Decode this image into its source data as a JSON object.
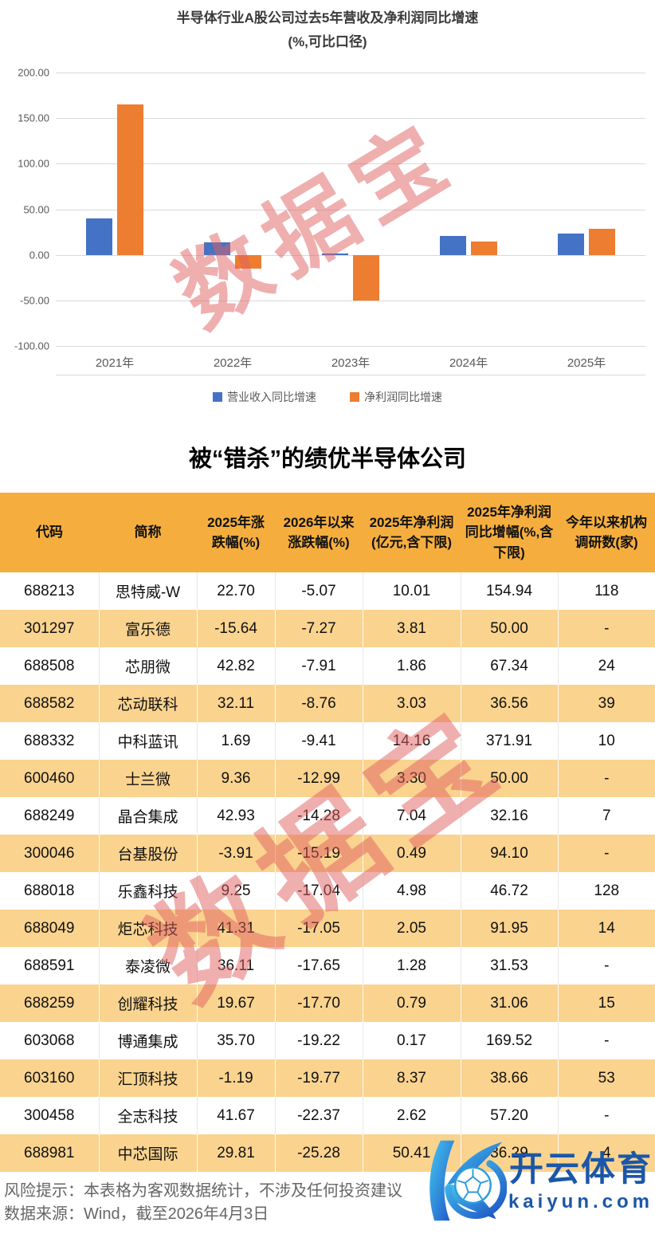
{
  "chart": {
    "title": "半导体行业A股公司过去5年营收及净利润同比增速",
    "subtitle": "(%,可比口径)"
  },
  "chart_data": {
    "type": "bar",
    "title": "半导体行业A股公司过去5年营收及净利润同比增速(%,可比口径)",
    "categories": [
      "2021年",
      "2022年",
      "2023年",
      "2024年",
      "2025年"
    ],
    "series": [
      {
        "name": "营业收入同比增速",
        "color": "#4472C4",
        "values": [
          40,
          14,
          1.5,
          21,
          23
        ]
      },
      {
        "name": "净利润同比增速",
        "color": "#ED7D31",
        "values": [
          165,
          -15,
          -50,
          15,
          29
        ]
      }
    ],
    "ylim": [
      -100,
      200
    ],
    "yticks": [
      200,
      150,
      100,
      50,
      0,
      -50,
      -100
    ],
    "grid": true,
    "legend_position": "bottom",
    "xlabel": "",
    "ylabel": ""
  },
  "watermark": {
    "text": "数据宝",
    "color": "rgba(224,96,96,0.5)"
  },
  "table": {
    "title": "被“错杀”的绩优半导体公司",
    "headers": [
      "代码",
      "简称",
      "2025年涨跌幅(%)",
      "2026年以来涨跌幅(%)",
      "2025年净利润(亿元,含下限)",
      "2025年净利润同比增幅(%,含下限)",
      "今年以来机构调研数(家)"
    ],
    "rows": [
      [
        "688213",
        "思特威-W",
        "22.70",
        "-5.07",
        "10.01",
        "154.94",
        "118"
      ],
      [
        "301297",
        "富乐德",
        "-15.64",
        "-7.27",
        "3.81",
        "50.00",
        "-"
      ],
      [
        "688508",
        "芯朋微",
        "42.82",
        "-7.91",
        "1.86",
        "67.34",
        "24"
      ],
      [
        "688582",
        "芯动联科",
        "32.11",
        "-8.76",
        "3.03",
        "36.56",
        "39"
      ],
      [
        "688332",
        "中科蓝讯",
        "1.69",
        "-9.41",
        "14.16",
        "371.91",
        "10"
      ],
      [
        "600460",
        "士兰微",
        "9.36",
        "-12.99",
        "3.30",
        "50.00",
        "-"
      ],
      [
        "688249",
        "晶合集成",
        "42.93",
        "-14.28",
        "7.04",
        "32.16",
        "7"
      ],
      [
        "300046",
        "台基股份",
        "-3.91",
        "-15.19",
        "0.49",
        "94.10",
        "-"
      ],
      [
        "688018",
        "乐鑫科技",
        "9.25",
        "-17.04",
        "4.98",
        "46.72",
        "128"
      ],
      [
        "688049",
        "炬芯科技",
        "41.31",
        "-17.05",
        "2.05",
        "91.95",
        "14"
      ],
      [
        "688591",
        "泰凌微",
        "36.11",
        "-17.65",
        "1.28",
        "31.53",
        "-"
      ],
      [
        "688259",
        "创耀科技",
        "19.67",
        "-17.70",
        "0.79",
        "31.06",
        "15"
      ],
      [
        "603068",
        "博通集成",
        "35.70",
        "-19.22",
        "0.17",
        "169.52",
        "-"
      ],
      [
        "603160",
        "汇顶科技",
        "-1.19",
        "-19.77",
        "8.37",
        "38.66",
        "53"
      ],
      [
        "300458",
        "全志科技",
        "41.67",
        "-22.37",
        "2.62",
        "57.20",
        "-"
      ],
      [
        "688981",
        "中芯国际",
        "29.81",
        "-25.28",
        "50.41",
        "36.29",
        "4"
      ]
    ],
    "colors": {
      "header_bg": "#F5AE3E",
      "stripe_bg": "#FAD38F"
    }
  },
  "footer": {
    "risk": "风险提示：本表格为客观数据统计，不涉及任何投资建议",
    "source": "数据来源：Wind，截至2026年4月3日"
  },
  "logo": {
    "brand": "开云体育",
    "domain": "kaiyun.com",
    "color": "#1B57A8"
  }
}
